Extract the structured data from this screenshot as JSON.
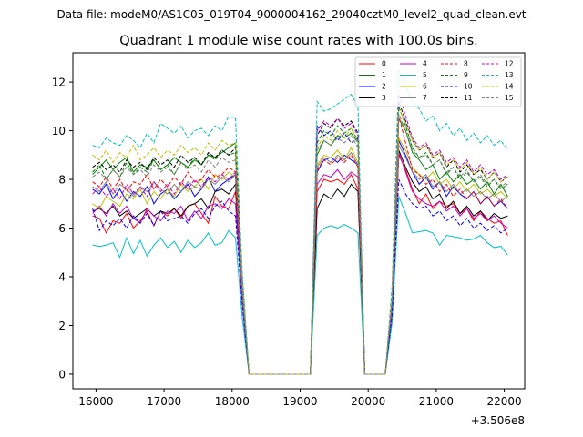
{
  "suptitle": "Data file: modeM0/AS1C05_019T04_9000004162_29040cztM0_level2_quad_clean.evt",
  "chart_data": {
    "type": "line",
    "title": "Quadrant 1 module wise count rates with 100.0s bins.",
    "xlabel": "",
    "ylabel": "",
    "x_offset_label": "+3.506e8",
    "xlim": [
      15660,
      22300
    ],
    "ylim": [
      -0.6,
      13.2
    ],
    "xticks": [
      16000,
      17000,
      18000,
      19000,
      20000,
      21000,
      22000
    ],
    "xtick_labels": [
      "16000",
      "17000",
      "18000",
      "19000",
      "20000",
      "21000",
      "22000"
    ],
    "yticks": [
      0,
      2,
      4,
      6,
      8,
      10,
      12
    ],
    "ytick_labels": [
      "0",
      "2",
      "4",
      "6",
      "8",
      "10",
      "12"
    ],
    "legend_position": "top-right",
    "x": [
      15950,
      16050,
      16150,
      16250,
      16350,
      16450,
      16550,
      16650,
      16750,
      16850,
      16950,
      17050,
      17150,
      17250,
      17350,
      17450,
      17550,
      17650,
      17750,
      17850,
      17950,
      18050,
      18150,
      18250,
      18350,
      18450,
      18550,
      18650,
      18750,
      18850,
      18950,
      19050,
      19150,
      19250,
      19350,
      19450,
      19550,
      19650,
      19750,
      19850,
      19950,
      20050,
      20150,
      20250,
      20350,
      20450,
      20550,
      20650,
      20750,
      20850,
      20950,
      21050,
      21150,
      21250,
      21350,
      21450,
      21550,
      21650,
      21750,
      21850,
      21950,
      22050
    ],
    "series": [
      {
        "name": "0",
        "color": "#ff0000",
        "dash": "solid",
        "values": [
          6.5,
          6.4,
          5.8,
          6.3,
          6.2,
          6.6,
          6.0,
          6.3,
          6.7,
          6.1,
          6.7,
          6.5,
          6.8,
          6.4,
          6.9,
          7.0,
          6.6,
          6.2,
          7.3,
          6.9,
          6.8,
          7.5,
          3.0,
          0,
          0,
          0,
          0,
          0,
          0,
          0,
          0,
          0,
          0,
          7.5,
          8.0,
          7.9,
          8.0,
          7.8,
          8.2,
          7.6,
          0,
          0,
          0,
          0,
          2.5,
          9.0,
          8.4,
          7.6,
          7.0,
          7.4,
          6.8,
          7.1,
          6.9,
          7.0,
          6.6,
          6.8,
          6.3,
          6.7,
          6.4,
          6.2,
          6.3,
          5.7
        ]
      },
      {
        "name": "1",
        "color": "#008000",
        "dash": "solid",
        "values": [
          8.2,
          8.5,
          8.8,
          8.4,
          8.7,
          8.9,
          8.3,
          8.6,
          8.5,
          8.8,
          8.4,
          8.6,
          8.9,
          8.7,
          8.5,
          8.8,
          8.6,
          9.0,
          8.9,
          9.1,
          9.3,
          9.5,
          4.0,
          0,
          0,
          0,
          0,
          0,
          0,
          0,
          0,
          0,
          0,
          9.0,
          9.6,
          9.4,
          9.8,
          9.7,
          9.9,
          9.5,
          0,
          0,
          0,
          0,
          3.0,
          10.5,
          10.0,
          9.1,
          8.8,
          8.4,
          8.6,
          8.0,
          8.3,
          7.9,
          8.2,
          7.8,
          8.0,
          7.6,
          7.9,
          7.4,
          7.8,
          7.3
        ]
      },
      {
        "name": "2",
        "color": "#0000ff",
        "dash": "solid",
        "values": [
          7.6,
          7.4,
          7.8,
          7.2,
          7.6,
          7.1,
          7.5,
          7.3,
          7.7,
          7.0,
          7.4,
          7.6,
          7.2,
          7.5,
          7.8,
          7.3,
          7.6,
          8.1,
          7.5,
          7.8,
          8.0,
          8.2,
          3.2,
          0,
          0,
          0,
          0,
          0,
          0,
          0,
          0,
          0,
          0,
          8.3,
          8.8,
          8.9,
          8.7,
          9.0,
          8.8,
          8.6,
          0,
          0,
          0,
          0,
          2.6,
          9.6,
          9.0,
          8.3,
          7.8,
          8.1,
          7.6,
          7.9,
          7.3,
          7.7,
          7.4,
          7.2,
          7.5,
          7.0,
          7.3,
          6.9,
          7.1,
          6.8
        ]
      },
      {
        "name": "3",
        "color": "#000000",
        "dash": "solid",
        "values": [
          6.7,
          6.8,
          6.6,
          6.9,
          6.5,
          6.7,
          6.4,
          6.6,
          6.8,
          6.5,
          6.7,
          6.6,
          6.8,
          6.5,
          6.9,
          7.0,
          7.2,
          6.8,
          7.5,
          7.6,
          7.4,
          7.8,
          3.1,
          0,
          0,
          0,
          0,
          0,
          0,
          0,
          0,
          0,
          0,
          6.8,
          7.4,
          7.2,
          7.6,
          7.3,
          7.8,
          7.5,
          0,
          0,
          0,
          0,
          2.7,
          9.2,
          8.5,
          7.9,
          7.5,
          7.7,
          7.2,
          7.4,
          6.8,
          7.1,
          6.6,
          6.9,
          6.5,
          6.7,
          6.3,
          6.6,
          6.4,
          6.5
        ]
      },
      {
        "name": "4",
        "color": "#c000c0",
        "dash": "solid",
        "values": [
          6.6,
          6.9,
          6.5,
          7.0,
          6.6,
          6.9,
          6.4,
          6.2,
          6.8,
          6.5,
          6.3,
          6.7,
          6.6,
          6.9,
          6.3,
          6.7,
          6.4,
          6.9,
          7.0,
          6.8,
          7.2,
          7.0,
          3.0,
          0,
          0,
          0,
          0,
          0,
          0,
          0,
          0,
          0,
          0,
          7.8,
          8.2,
          8.1,
          8.4,
          8.0,
          8.3,
          8.1,
          0,
          0,
          0,
          0,
          2.5,
          9.1,
          8.3,
          7.5,
          7.2,
          7.0,
          6.9,
          7.1,
          6.7,
          6.9,
          6.5,
          6.8,
          6.4,
          6.6,
          6.3,
          6.5,
          6.2,
          6.0
        ]
      },
      {
        "name": "5",
        "color": "#00c0c0",
        "dash": "solid",
        "values": [
          5.3,
          5.25,
          5.3,
          5.4,
          4.8,
          5.6,
          4.95,
          5.5,
          4.85,
          5.3,
          5.6,
          5.2,
          5.45,
          5.0,
          5.5,
          5.2,
          5.4,
          5.8,
          5.3,
          5.4,
          5.9,
          5.6,
          2.3,
          0,
          0,
          0,
          0,
          0,
          0,
          0,
          0,
          0,
          0,
          5.7,
          6.0,
          6.1,
          6.0,
          6.15,
          6.0,
          5.8,
          0,
          0,
          0,
          0,
          2.1,
          7.3,
          6.6,
          5.8,
          5.85,
          5.9,
          5.8,
          5.3,
          5.7,
          5.65,
          5.6,
          5.5,
          5.55,
          5.7,
          5.4,
          5.2,
          5.25,
          4.9
        ]
      },
      {
        "name": "6",
        "color": "#bfbf00",
        "dash": "solid",
        "values": [
          7.0,
          6.8,
          7.3,
          7.1,
          6.9,
          7.4,
          7.2,
          7.6,
          7.0,
          7.5,
          7.2,
          7.6,
          7.3,
          7.8,
          7.5,
          7.7,
          8.0,
          7.6,
          8.2,
          8.0,
          8.3,
          8.1,
          3.3,
          0,
          0,
          0,
          0,
          0,
          0,
          0,
          0,
          0,
          0,
          8.6,
          9.0,
          8.9,
          9.2,
          8.8,
          9.3,
          8.7,
          0,
          0,
          0,
          0,
          2.8,
          9.7,
          9.2,
          8.5,
          8.2,
          8.0,
          8.3,
          7.8,
          8.0,
          7.6,
          7.9,
          7.5,
          7.8,
          7.4,
          7.6,
          7.3,
          7.5,
          7.2
        ]
      },
      {
        "name": "7",
        "color": "#808080",
        "dash": "solid",
        "values": [
          7.7,
          7.5,
          7.9,
          7.4,
          7.8,
          7.6,
          7.3,
          7.7,
          7.5,
          7.9,
          7.6,
          7.4,
          7.8,
          7.5,
          7.9,
          7.7,
          7.6,
          8.0,
          7.8,
          8.1,
          7.9,
          8.2,
          3.2,
          0,
          0,
          0,
          0,
          0,
          0,
          0,
          0,
          0,
          0,
          8.5,
          8.9,
          8.7,
          9.0,
          8.8,
          9.1,
          8.6,
          0,
          0,
          0,
          0,
          2.7,
          9.4,
          8.9,
          8.3,
          8.0,
          8.2,
          7.7,
          7.9,
          7.5,
          7.8,
          7.4,
          7.6,
          7.3,
          7.5,
          7.2,
          7.4,
          7.1,
          7.3
        ]
      },
      {
        "name": "8",
        "color": "#ff0000",
        "dash": "dashed",
        "values": [
          7.9,
          7.7,
          8.1,
          7.6,
          8.0,
          7.5,
          7.9,
          7.8,
          8.2,
          7.6,
          8.0,
          7.7,
          8.1,
          7.8,
          8.3,
          7.9,
          8.0,
          8.4,
          8.1,
          8.2,
          8.5,
          8.3,
          3.5,
          0,
          0,
          0,
          0,
          0,
          0,
          0,
          0,
          0,
          0,
          8.4,
          8.8,
          8.6,
          8.9,
          8.7,
          9.0,
          8.5,
          0,
          0,
          0,
          0,
          2.9,
          10.6,
          9.5,
          8.4,
          8.2,
          7.8,
          8.0,
          7.5,
          7.8,
          7.3,
          7.6,
          7.2,
          7.5,
          7.0,
          7.3,
          6.9,
          7.2,
          6.8
        ]
      },
      {
        "name": "9",
        "color": "#008000",
        "dash": "dashed",
        "values": [
          8.3,
          8.6,
          8.0,
          8.4,
          8.1,
          8.7,
          8.2,
          8.5,
          8.3,
          8.8,
          8.4,
          8.6,
          8.2,
          8.7,
          8.5,
          8.9,
          8.6,
          9.0,
          8.8,
          9.2,
          9.0,
          9.1,
          3.6,
          0,
          0,
          0,
          0,
          0,
          0,
          0,
          0,
          0,
          0,
          9.5,
          10.0,
          9.8,
          10.2,
          9.9,
          10.1,
          9.6,
          0,
          0,
          0,
          0,
          3.1,
          11.0,
          10.2,
          9.3,
          8.9,
          9.1,
          8.6,
          8.8,
          8.2,
          8.5,
          8.0,
          8.3,
          7.9,
          8.1,
          7.7,
          8.0,
          7.6,
          7.8
        ]
      },
      {
        "name": "10",
        "color": "#0000ff",
        "dash": "dashed",
        "values": [
          6.8,
          5.9,
          6.3,
          6.1,
          6.4,
          6.0,
          6.5,
          6.2,
          6.6,
          6.1,
          6.7,
          6.3,
          6.4,
          6.5,
          6.2,
          6.6,
          6.8,
          6.4,
          6.9,
          7.1,
          6.7,
          6.5,
          2.8,
          0,
          0,
          0,
          0,
          0,
          0,
          0,
          0,
          0,
          0,
          10.2,
          9.8,
          10.0,
          9.6,
          9.9,
          9.5,
          9.7,
          0,
          0,
          0,
          0,
          2.4,
          8.0,
          7.4,
          7.0,
          6.8,
          6.9,
          6.5,
          6.7,
          6.3,
          6.5,
          6.1,
          6.4,
          6.0,
          6.2,
          5.9,
          6.1,
          5.8,
          6.0
        ]
      },
      {
        "name": "11",
        "color": "#000000",
        "dash": "dashed",
        "values": [
          8.5,
          8.7,
          8.4,
          8.6,
          8.3,
          8.8,
          8.5,
          8.7,
          8.4,
          8.9,
          8.6,
          8.8,
          8.5,
          9.0,
          8.7,
          8.9,
          8.6,
          9.1,
          8.9,
          9.2,
          9.0,
          9.3,
          3.7,
          0,
          0,
          0,
          0,
          0,
          0,
          0,
          0,
          0,
          0,
          9.8,
          10.3,
          10.1,
          10.5,
          10.2,
          10.4,
          9.9,
          0,
          0,
          0,
          0,
          3.2,
          11.2,
          10.4,
          9.6,
          9.2,
          9.4,
          8.9,
          9.1,
          8.5,
          8.8,
          8.3,
          8.6,
          8.2,
          8.4,
          8.0,
          8.3,
          7.9,
          8.1
        ]
      },
      {
        "name": "12",
        "color": "#c000c0",
        "dash": "dashed",
        "values": [
          7.4,
          7.7,
          7.3,
          7.6,
          7.2,
          7.8,
          7.4,
          7.7,
          7.3,
          7.9,
          7.5,
          7.8,
          7.4,
          7.9,
          7.6,
          8.0,
          7.7,
          8.1,
          7.9,
          8.2,
          8.0,
          8.3,
          3.3,
          0,
          0,
          0,
          0,
          0,
          0,
          0,
          0,
          0,
          0,
          10.0,
          10.4,
          10.2,
          10.5,
          10.1,
          10.3,
          9.8,
          0,
          0,
          0,
          0,
          2.9,
          11.5,
          10.6,
          9.7,
          9.3,
          9.5,
          9.0,
          9.2,
          8.7,
          8.9,
          8.5,
          8.8,
          8.3,
          8.6,
          8.2,
          8.4,
          8.0,
          8.2
        ]
      },
      {
        "name": "13",
        "color": "#00c0c0",
        "dash": "dashed",
        "values": [
          9.4,
          9.3,
          9.7,
          9.5,
          9.4,
          9.8,
          9.6,
          9.3,
          9.9,
          9.5,
          10.3,
          10.1,
          9.9,
          10.2,
          9.7,
          10.0,
          10.1,
          9.8,
          10.2,
          10.0,
          10.6,
          10.5,
          4.1,
          0,
          0,
          0,
          0,
          0,
          0,
          0,
          0,
          0,
          0,
          11.2,
          10.8,
          10.9,
          11.1,
          11.3,
          11.5,
          11.0,
          0,
          0,
          0,
          0,
          3.6,
          12.5,
          11.8,
          11.2,
          10.9,
          10.4,
          10.6,
          10.0,
          10.3,
          9.8,
          10.1,
          9.6,
          9.9,
          9.5,
          9.8,
          9.4,
          9.6,
          9.2
        ]
      },
      {
        "name": "14",
        "color": "#bfbf00",
        "dash": "dashed",
        "values": [
          9.0,
          8.8,
          9.2,
          8.7,
          9.1,
          8.9,
          9.4,
          8.8,
          9.0,
          9.3,
          8.9,
          9.2,
          9.0,
          9.4,
          9.1,
          9.3,
          9.0,
          9.5,
          9.2,
          9.6,
          9.4,
          9.5,
          3.8,
          0,
          0,
          0,
          0,
          0,
          0,
          0,
          0,
          0,
          0,
          9.3,
          9.8,
          9.6,
          10.0,
          9.7,
          10.1,
          9.5,
          0,
          0,
          0,
          0,
          3.2,
          10.9,
          10.3,
          9.6,
          9.2,
          9.4,
          8.9,
          9.1,
          8.6,
          8.8,
          8.4,
          8.7,
          8.2,
          8.5,
          8.0,
          8.3,
          7.9,
          8.1
        ]
      },
      {
        "name": "15",
        "color": "#808080",
        "dash": "dashed",
        "values": [
          8.1,
          8.3,
          8.0,
          8.4,
          8.1,
          8.5,
          8.2,
          8.4,
          8.1,
          8.6,
          8.3,
          8.5,
          8.2,
          8.7,
          8.4,
          8.6,
          8.3,
          8.8,
          8.5,
          8.9,
          8.7,
          8.8,
          3.4,
          0,
          0,
          0,
          0,
          0,
          0,
          0,
          0,
          0,
          0,
          9.2,
          9.6,
          9.4,
          9.7,
          9.5,
          9.8,
          9.3,
          0,
          0,
          0,
          0,
          3.0,
          10.7,
          10.0,
          9.2,
          8.9,
          9.0,
          8.6,
          8.8,
          8.3,
          8.5,
          8.1,
          8.4,
          7.9,
          8.2,
          7.8,
          8.0,
          7.7,
          7.9
        ]
      }
    ]
  }
}
